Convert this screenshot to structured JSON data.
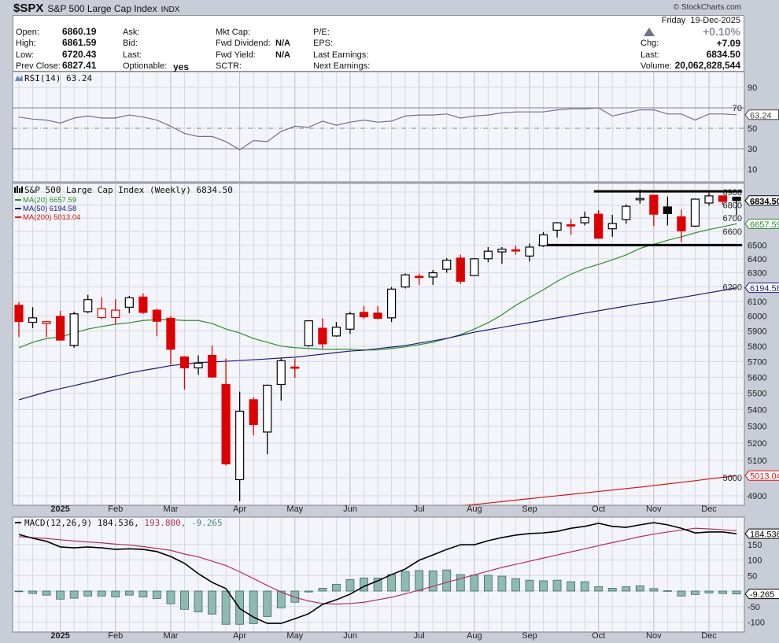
{
  "header": {
    "symbol": "$SPX",
    "name": "S&P 500 Large Cap Index",
    "exchange": "INDX",
    "credit": "© StockCharts.com"
  },
  "quote": {
    "open_label": "Open:",
    "open": "6860.19",
    "high_label": "High:",
    "high": "6861.59",
    "low_label": "Low:",
    "low": "6720.43",
    "prev_close_label": "Prev Close:",
    "prev_close": "6827.41",
    "ask_label": "Ask:",
    "bid_label": "Bid:",
    "last_col_label": "Last:",
    "optionable_label": "Optionable:",
    "optionable": "yes",
    "mkt_cap_label": "Mkt Cap:",
    "fwd_dividend_label": "Fwd Dividend:",
    "fwd_dividend": "N/A",
    "fwd_yield_label": "Fwd Yield:",
    "fwd_yield": "N/A",
    "sctr_label": "SCTR:",
    "pe_label": "P/E:",
    "eps_label": "EPS:",
    "last_earnings_label": "Last Earnings:",
    "next_earnings_label": "Next Earnings:",
    "date": "Friday  19-Dec-2025",
    "pct_change": "+0.10%",
    "chg_label": "Chg:",
    "chg": "+7.09",
    "last_label": "Last:",
    "last": "6834.50",
    "volume_label": "Volume:",
    "volume": "20,062,828,544",
    "direction_icon": "up-triangle-icon"
  },
  "colors": {
    "up_candle": "#000000",
    "down_candle": "#dd0000",
    "ma20": "#2e8b2e",
    "ma50": "#1c1c78",
    "ma200": "#d41414",
    "rsi": "#6b7096",
    "macd": "#000000",
    "signal": "#b0305a",
    "histogram": "#8fbab2",
    "panel_bg": "#f4f5fa",
    "grid": "#d6d9e2"
  },
  "chart_data": [
    {
      "type": "rsi-line",
      "title": "RSI(14) 63.24",
      "current_tag": "63.24",
      "yticks": [
        10,
        30,
        50,
        70,
        90
      ],
      "ylim": [
        0,
        100
      ],
      "values": [
        61,
        59,
        58,
        55,
        60,
        62,
        60,
        60,
        63,
        61,
        58,
        52,
        45,
        42,
        42,
        37,
        29,
        38,
        37,
        47,
        52,
        51,
        57,
        53,
        56,
        58,
        56,
        57,
        62,
        63,
        63,
        64,
        60,
        62,
        63,
        65,
        66,
        66,
        66,
        68,
        69,
        69,
        70,
        62,
        65,
        68,
        68,
        64,
        64,
        58,
        64,
        64,
        63.24
      ]
    },
    {
      "type": "candlestick",
      "title": "S&P 500 Large Cap Index (Weekly) 6834.50",
      "scale": "log",
      "ylim": [
        4830,
        6960
      ],
      "yticks": [
        4900,
        5000,
        5100,
        5200,
        5300,
        5400,
        5500,
        5600,
        5700,
        5800,
        5900,
        6000,
        6100,
        6200,
        6300,
        6400,
        6500,
        6600,
        6700,
        6800,
        6900
      ],
      "last_tag": "6834.50",
      "legend": [
        {
          "label": "MA(20) 6657.59",
          "color": "#2e8b2e",
          "tag": "6657.59"
        },
        {
          "label": "MA(50) 6194.58",
          "color": "#1c1c78",
          "tag": "6194.58"
        },
        {
          "label": "MA(200) 5013.04",
          "color": "#d41414",
          "tag": "5013.04"
        }
      ],
      "open": [
        6073,
        5958,
        5950,
        5998,
        5805,
        6030,
        5990,
        5990,
        6060,
        6130,
        6040,
        5985,
        5730,
        5660,
        5740,
        5555,
        4990,
        5460,
        5265,
        5555,
        5665,
        5803,
        5918,
        5867,
        5912,
        6025,
        6020,
        5988,
        6200,
        6275,
        6270,
        6325,
        6405,
        6280,
        6400,
        6450,
        6465,
        6420,
        6495,
        6610,
        6650,
        6665,
        6730,
        6620,
        6690,
        6840,
        6875,
        6785,
        6710,
        6640,
        6815,
        6870,
        6860.19
      ],
      "high": [
        6095,
        6060,
        5965,
        6035,
        6030,
        6145,
        6128,
        6115,
        6138,
        6155,
        6050,
        6000,
        5735,
        5740,
        5805,
        5720,
        5510,
        5475,
        5555,
        5720,
        5720,
        5968,
        5985,
        5960,
        6030,
        6070,
        6068,
        6200,
        6295,
        6295,
        6320,
        6405,
        6430,
        6405,
        6485,
        6485,
        6495,
        6510,
        6595,
        6670,
        6695,
        6750,
        6760,
        6725,
        6805,
        6920,
        6875,
        6865,
        6765,
        6850,
        6895,
        6870,
        6861.59
      ],
      "low": [
        5860,
        5919,
        5860,
        5835,
        5790,
        6020,
        5980,
        5945,
        6020,
        6015,
        5865,
        5680,
        5523,
        5617,
        5597,
        5070,
        4870,
        5245,
        5135,
        5455,
        5597,
        5795,
        5785,
        5862,
        5880,
        5980,
        5978,
        5960,
        6190,
        6215,
        6215,
        6300,
        6220,
        6280,
        6375,
        6365,
        6430,
        6380,
        6485,
        6555,
        6575,
        6645,
        6550,
        6560,
        6660,
        6810,
        6640,
        6645,
        6520,
        6635,
        6795,
        6800,
        6720.43
      ],
      "close": [
        5963,
        5988,
        5962,
        5840,
        6015,
        6112,
        6050,
        6040,
        6125,
        6025,
        5965,
        5780,
        5660,
        5690,
        5602,
        5080,
        5390,
        5310,
        5550,
        5705,
        5660,
        5968,
        5815,
        5925,
        6015,
        5995,
        5985,
        6185,
        6285,
        6270,
        6300,
        6390,
        6240,
        6400,
        6455,
        6470,
        6460,
        6485,
        6575,
        6665,
        6645,
        6705,
        6550,
        6660,
        6790,
        6850,
        6730,
        6735,
        6605,
        6845,
        6870,
        6827.41,
        6834.5
      ],
      "ma20": [
        5790,
        5825,
        5850,
        5860,
        5887,
        5913,
        5930,
        5945,
        5955,
        5970,
        5976,
        5976,
        5970,
        5970,
        5950,
        5913,
        5887,
        5850,
        5825,
        5800,
        5790,
        5785,
        5780,
        5780,
        5780,
        5775,
        5775,
        5785,
        5795,
        5810,
        5825,
        5850,
        5875,
        5913,
        5955,
        6009,
        6073,
        6127,
        6180,
        6240,
        6290,
        6330,
        6360,
        6393,
        6428,
        6475,
        6505,
        6535,
        6560,
        6590,
        6615,
        6635,
        6657.59
      ],
      "ma50": [
        5460,
        5484,
        5509,
        5529,
        5548,
        5568,
        5587,
        5607,
        5627,
        5643,
        5658,
        5674,
        5684,
        5694,
        5697,
        5702,
        5707,
        5712,
        5717,
        5723,
        5728,
        5738,
        5748,
        5758,
        5768,
        5773,
        5784,
        5794,
        5804,
        5820,
        5835,
        5851,
        5871,
        5892,
        5908,
        5924,
        5940,
        5956,
        5972,
        5988,
        6004,
        6020,
        6036,
        6052,
        6068,
        6084,
        6095,
        6111,
        6127,
        6143,
        6160,
        6176,
        6194.58
      ],
      "ma200": [
        null,
        null,
        null,
        null,
        null,
        null,
        null,
        null,
        null,
        null,
        null,
        null,
        null,
        null,
        null,
        null,
        null,
        null,
        null,
        null,
        null,
        null,
        null,
        null,
        null,
        null,
        null,
        null,
        4810,
        4818,
        4826,
        4835,
        4845,
        4852,
        4860,
        4868,
        4876,
        4884,
        4892,
        4900,
        4908,
        4916,
        4924,
        4932,
        4940,
        4948,
        4957,
        4966,
        4975,
        4984,
        4994,
        5003,
        5013.04
      ],
      "trendlines": [
        {
          "name": "resistance",
          "price": 6905,
          "from_week": 42,
          "to_week": 52
        },
        {
          "name": "support",
          "price": 6500,
          "from_week": 38,
          "to_week": 52
        }
      ]
    },
    {
      "type": "macd",
      "title": "MACD(12,26,9)",
      "legend_macd": "184.536,",
      "legend_signal": "193.800,",
      "legend_hist": "-9.265",
      "tags": {
        "macd": "184.536",
        "hist": "-9.265"
      },
      "yticks": [
        -100,
        -50,
        0,
        50,
        100,
        150
      ],
      "ylim": [
        -130,
        245
      ],
      "macd": [
        182,
        170,
        160,
        142,
        139,
        142,
        139,
        134,
        136,
        134,
        127,
        111,
        89,
        56,
        28,
        8,
        -56,
        -84,
        -104,
        -104,
        -89,
        -73,
        -43,
        -28,
        -10,
        15,
        33,
        53,
        71,
        99,
        116,
        134,
        149,
        149,
        162,
        172,
        180,
        185,
        187,
        192,
        202,
        208,
        218,
        208,
        205,
        213,
        220,
        213,
        202,
        187,
        190,
        190,
        184.536
      ],
      "signal": [
        175,
        172,
        169,
        165,
        161,
        158,
        155,
        151,
        148,
        143,
        137,
        131,
        119,
        110,
        96,
        82,
        62,
        40,
        18,
        -3,
        -20,
        -32,
        -40,
        -42,
        -40,
        -36,
        -28,
        -20,
        -9,
        3,
        15,
        28,
        40,
        52,
        64,
        76,
        86,
        96,
        106,
        116,
        126,
        136,
        146,
        156,
        165,
        175,
        183,
        190,
        196,
        202,
        200,
        197,
        193.8
      ],
      "histogram": [
        0,
        -8,
        -13,
        -26,
        -23,
        -16,
        -16,
        -19,
        -13,
        -19,
        -24,
        -41,
        -59,
        -67,
        -74,
        -107,
        -107,
        -105,
        -82,
        -54,
        -36,
        -3,
        9,
        22,
        37,
        42,
        42,
        53,
        63,
        66,
        65,
        68,
        53,
        51,
        51,
        48,
        40,
        35,
        33,
        35,
        30,
        30,
        14,
        9,
        14,
        17,
        8,
        1,
        -16,
        -11,
        -6,
        -8,
        -9.265
      ]
    }
  ],
  "x_axis": {
    "labels": [
      {
        "label": "2025",
        "week": 3,
        "bold": true
      },
      {
        "label": "Feb",
        "week": 7
      },
      {
        "label": "Mar",
        "week": 11
      },
      {
        "label": "Apr",
        "week": 16
      },
      {
        "label": "May",
        "week": 20
      },
      {
        "label": "Jun",
        "week": 24
      },
      {
        "label": "Jul",
        "week": 29
      },
      {
        "label": "Aug",
        "week": 33
      },
      {
        "label": "Sep",
        "week": 37
      },
      {
        "label": "Oct",
        "week": 42
      },
      {
        "label": "Nov",
        "week": 46
      },
      {
        "label": "Dec",
        "week": 50
      }
    ]
  }
}
